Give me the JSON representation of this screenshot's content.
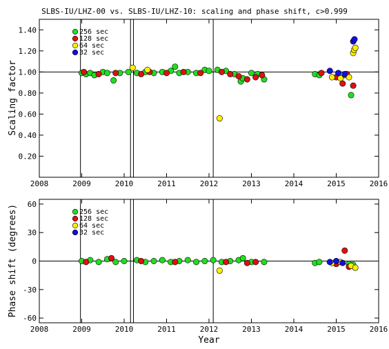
{
  "title": "SLBS-IU/LHZ-00 vs. SLBS-IU/LHZ-10: scaling and phase shift, c>0.999",
  "colors": {
    "256 sec": "#22dd22",
    "128 sec": "#dd1111",
    "64 sec": "#ffee00",
    "32 sec": "#1111dd"
  },
  "chart_data": [
    {
      "type": "scatter",
      "ylabel": "Scaling factor",
      "xlim": [
        2008,
        2016
      ],
      "ylim": [
        0,
        1.5
      ],
      "xticks": [
        "2008",
        "2009",
        "2010",
        "2011",
        "2012",
        "2013",
        "2014",
        "2015",
        "2016"
      ],
      "yticks": [
        "0.20",
        "0.40",
        "0.60",
        "0.80",
        "1.00",
        "1.20",
        "1.40"
      ],
      "reference_line": 1.0,
      "vertical_lines": [
        2008.97,
        2010.15,
        2010.22,
        2012.1
      ],
      "legend": [
        "256 sec",
        "128 sec",
        "64 sec",
        "32 sec"
      ],
      "series": [
        {
          "name": "256 sec",
          "points": [
            [
              2009.0,
              0.99
            ],
            [
              2009.1,
              0.98
            ],
            [
              2009.2,
              0.99
            ],
            [
              2009.3,
              0.97
            ],
            [
              2009.5,
              1.0
            ],
            [
              2009.6,
              0.99
            ],
            [
              2009.75,
              0.92
            ],
            [
              2009.9,
              0.99
            ],
            [
              2010.1,
              1.0
            ],
            [
              2010.3,
              0.99
            ],
            [
              2010.5,
              1.0
            ],
            [
              2010.7,
              0.99
            ],
            [
              2010.9,
              1.0
            ],
            [
              2011.1,
              1.01
            ],
            [
              2011.2,
              1.05
            ],
            [
              2011.3,
              0.99
            ],
            [
              2011.5,
              1.0
            ],
            [
              2011.7,
              0.99
            ],
            [
              2011.9,
              1.02
            ],
            [
              2012.0,
              1.01
            ],
            [
              2012.2,
              1.02
            ],
            [
              2012.4,
              1.01
            ],
            [
              2012.6,
              0.98
            ],
            [
              2012.75,
              0.91
            ],
            [
              2012.8,
              0.94
            ],
            [
              2013.0,
              0.99
            ],
            [
              2013.15,
              0.98
            ],
            [
              2013.3,
              0.93
            ],
            [
              2014.5,
              0.98
            ],
            [
              2014.6,
              0.97
            ],
            [
              2015.2,
              0.97
            ],
            [
              2015.35,
              0.78
            ]
          ]
        },
        {
          "name": "128 sec",
          "points": [
            [
              2009.05,
              1.0
            ],
            [
              2009.4,
              0.98
            ],
            [
              2009.8,
              0.99
            ],
            [
              2010.4,
              0.98
            ],
            [
              2010.6,
              1.0
            ],
            [
              2011.0,
              0.99
            ],
            [
              2011.4,
              1.0
            ],
            [
              2011.8,
              0.99
            ],
            [
              2012.3,
              1.0
            ],
            [
              2012.5,
              0.98
            ],
            [
              2012.7,
              0.96
            ],
            [
              2012.9,
              0.93
            ],
            [
              2013.1,
              0.95
            ],
            [
              2013.25,
              0.97
            ],
            [
              2014.65,
              0.99
            ],
            [
              2015.0,
              0.95
            ],
            [
              2015.15,
              0.89
            ],
            [
              2015.25,
              0.98
            ],
            [
              2015.4,
              0.87
            ]
          ]
        },
        {
          "name": "64 sec",
          "points": [
            [
              2010.2,
              1.04
            ],
            [
              2010.55,
              1.02
            ],
            [
              2012.25,
              0.56
            ],
            [
              2014.9,
              0.95
            ],
            [
              2015.1,
              0.94
            ],
            [
              2015.3,
              0.95
            ],
            [
              2015.4,
              1.18
            ],
            [
              2015.42,
              1.21
            ],
            [
              2015.45,
              1.23
            ]
          ]
        },
        {
          "name": "32 sec",
          "points": [
            [
              2014.85,
              1.01
            ],
            [
              2015.05,
              0.99
            ],
            [
              2015.2,
              0.98
            ],
            [
              2015.4,
              1.29
            ],
            [
              2015.43,
              1.31
            ]
          ]
        }
      ]
    },
    {
      "type": "scatter",
      "xlabel": "Year",
      "ylabel": "Phase shift (degrees)",
      "xlim": [
        2008,
        2016
      ],
      "ylim": [
        -65,
        65
      ],
      "xticks": [
        "2008",
        "2009",
        "2010",
        "2011",
        "2012",
        "2013",
        "2014",
        "2015",
        "2016"
      ],
      "yticks": [
        "-60",
        "-30",
        "0",
        "30",
        "60"
      ],
      "reference_line": 0,
      "vertical_lines": [
        2008.97,
        2010.15,
        2010.22,
        2012.1
      ],
      "legend": [
        "256 sec",
        "128 sec",
        "64 sec",
        "32 sec"
      ],
      "series": [
        {
          "name": "256 sec",
          "points": [
            [
              2009.0,
              0
            ],
            [
              2009.2,
              1
            ],
            [
              2009.4,
              -1
            ],
            [
              2009.6,
              2
            ],
            [
              2009.8,
              -1
            ],
            [
              2010.0,
              0
            ],
            [
              2010.3,
              1
            ],
            [
              2010.5,
              -1
            ],
            [
              2010.7,
              0
            ],
            [
              2010.9,
              1
            ],
            [
              2011.1,
              -1
            ],
            [
              2011.3,
              0
            ],
            [
              2011.5,
              1
            ],
            [
              2011.7,
              -1
            ],
            [
              2011.9,
              0
            ],
            [
              2012.1,
              1
            ],
            [
              2012.3,
              -1
            ],
            [
              2012.5,
              0
            ],
            [
              2012.7,
              1
            ],
            [
              2012.8,
              3
            ],
            [
              2013.0,
              -1
            ],
            [
              2013.3,
              -1
            ],
            [
              2014.5,
              -2
            ],
            [
              2014.6,
              -1
            ],
            [
              2015.3,
              -3
            ],
            [
              2015.4,
              -4
            ]
          ]
        },
        {
          "name": "128 sec",
          "points": [
            [
              2009.1,
              -1
            ],
            [
              2009.7,
              3
            ],
            [
              2010.4,
              0
            ],
            [
              2011.2,
              -1
            ],
            [
              2012.4,
              -1
            ],
            [
              2012.9,
              -2
            ],
            [
              2013.1,
              -1
            ],
            [
              2015.0,
              -3
            ],
            [
              2015.2,
              11
            ],
            [
              2015.3,
              -6
            ]
          ]
        },
        {
          "name": "64 sec",
          "points": [
            [
              2012.25,
              -10
            ],
            [
              2014.9,
              -2
            ],
            [
              2015.1,
              -1
            ],
            [
              2015.35,
              -5
            ],
            [
              2015.45,
              -7
            ]
          ]
        },
        {
          "name": "32 sec",
          "points": [
            [
              2014.85,
              -1
            ],
            [
              2015.0,
              0
            ],
            [
              2015.15,
              -2
            ]
          ]
        }
      ]
    }
  ]
}
